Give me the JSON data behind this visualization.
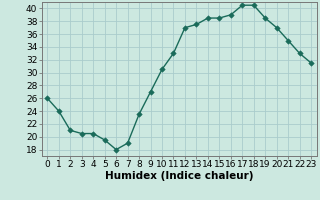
{
  "x": [
    0,
    1,
    2,
    3,
    4,
    5,
    6,
    7,
    8,
    9,
    10,
    11,
    12,
    13,
    14,
    15,
    16,
    17,
    18,
    19,
    20,
    21,
    22,
    23
  ],
  "y": [
    26,
    24,
    21,
    20.5,
    20.5,
    19.5,
    18,
    19,
    23.5,
    27,
    30.5,
    33,
    37,
    37.5,
    38.5,
    38.5,
    39,
    40.5,
    40.5,
    38.5,
    37,
    35,
    33,
    31.5
  ],
  "line_color": "#1a6b5a",
  "marker_color": "#1a6b5a",
  "bg_color": "#cce8e0",
  "grid_color": "#aacccc",
  "xlabel": "Humidex (Indice chaleur)",
  "ylim": [
    17,
    41
  ],
  "xlim": [
    -0.5,
    23.5
  ],
  "yticks": [
    18,
    20,
    22,
    24,
    26,
    28,
    30,
    32,
    34,
    36,
    38,
    40
  ],
  "xticks": [
    0,
    1,
    2,
    3,
    4,
    5,
    6,
    7,
    8,
    9,
    10,
    11,
    12,
    13,
    14,
    15,
    16,
    17,
    18,
    19,
    20,
    21,
    22,
    23
  ],
  "xtick_labels": [
    "0",
    "1",
    "2",
    "3",
    "4",
    "5",
    "6",
    "7",
    "8",
    "9",
    "10",
    "11",
    "12",
    "13",
    "14",
    "15",
    "16",
    "17",
    "18",
    "19",
    "20",
    "21",
    "22",
    "23"
  ],
  "xlabel_fontsize": 7.5,
  "tick_fontsize": 6.5,
  "linewidth": 1.0,
  "markersize": 2.8
}
